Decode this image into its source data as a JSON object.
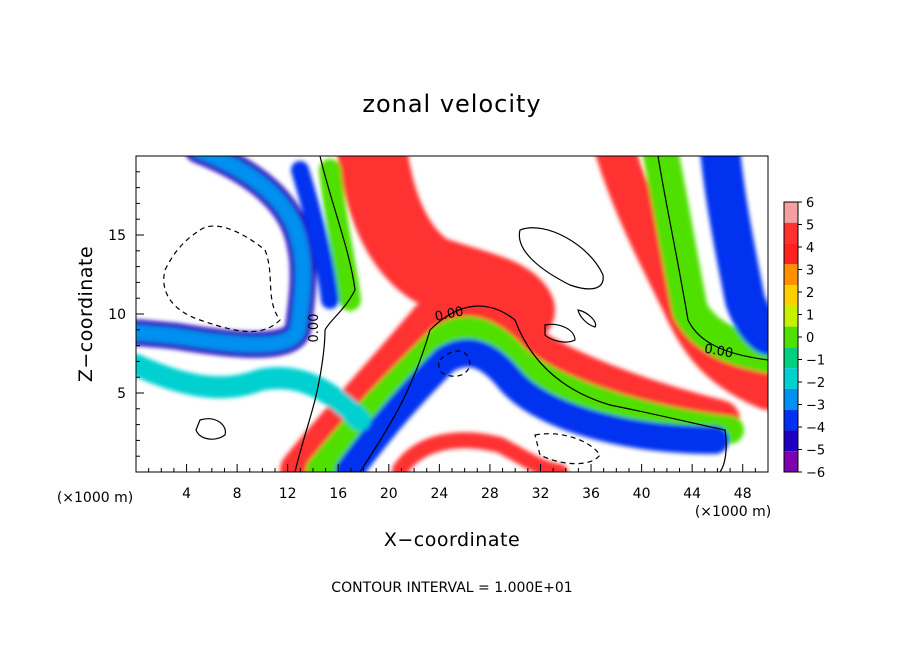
{
  "chart_data": {
    "type": "heatmap",
    "title": "zonal velocity",
    "xlabel": "X−coordinate",
    "ylabel": "Z−coordinate",
    "x_unit": "(×1000 m)",
    "x_unit_right": "(×1000 m)",
    "footer": "CONTOUR INTERVAL = 1.000E+01",
    "xlim": [
      0,
      50
    ],
    "ylim": [
      0,
      20
    ],
    "x_ticks": [
      4,
      8,
      12,
      16,
      20,
      24,
      28,
      32,
      36,
      40,
      44,
      48
    ],
    "x_tick_labels": [
      "4",
      "8",
      "12",
      "16",
      "20",
      "24",
      "28",
      "32",
      "36",
      "40",
      "44",
      "48"
    ],
    "y_ticks": [
      5,
      10,
      15
    ],
    "y_tick_labels": [
      "5",
      "10",
      "15"
    ],
    "colorbar": {
      "min": -6,
      "max": 6,
      "levels": [
        6,
        5,
        4,
        3,
        2,
        1,
        0,
        -1,
        -2,
        -3,
        -4,
        -5,
        -6
      ],
      "labels": [
        "6",
        "5",
        "4",
        "3",
        "2",
        "1",
        "0",
        "−1",
        "−2",
        "−3",
        "−4",
        "−5",
        "−6"
      ],
      "colors": [
        "#f4a0a0",
        "#ff3030",
        "#ff2020",
        "#ff9000",
        "#ffd000",
        "#c8f000",
        "#50e000",
        "#00d080",
        "#00d0d0",
        "#0090f0",
        "#0030f0",
        "#2000c0",
        "#8000b0"
      ]
    },
    "contour_labels": [
      "0.00",
      "0.00",
      "0.00"
    ],
    "grid": false
  }
}
